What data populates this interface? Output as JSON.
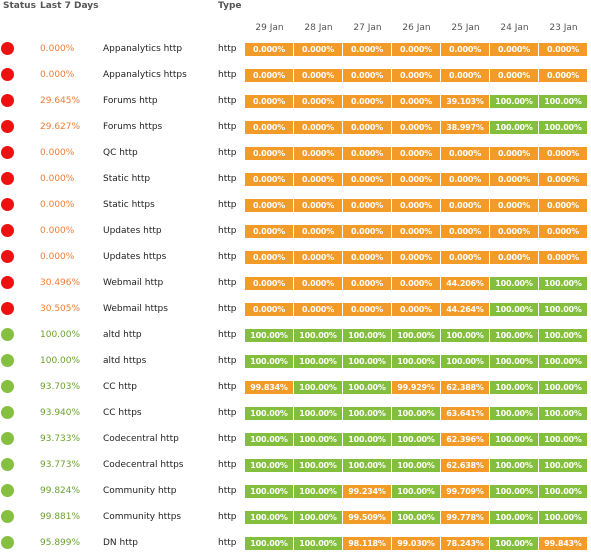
{
  "headers": {
    "status": "Status",
    "last7": "Last 7 Days",
    "type": "Type"
  },
  "dates": [
    "29 Jan",
    "28 Jan",
    "27 Jan",
    "26 Jan",
    "25 Jan",
    "24 Jan",
    "23 Jan"
  ],
  "colors": {
    "down": "#ee1111",
    "up": "#86c041",
    "bad_pct": "#f07d32",
    "good_pct": "#6aa22b",
    "cell_orange": "#f39b29",
    "cell_green": "#83bf3c"
  },
  "rows": [
    {
      "status": "down",
      "pct": "0.000%",
      "service": "Appanalytics http",
      "type": "http",
      "days": [
        "0.000%",
        "0.000%",
        "0.000%",
        "0.000%",
        "0.000%",
        "0.000%",
        "0.000%"
      ]
    },
    {
      "status": "down",
      "pct": "0.000%",
      "service": "Appanalytics https",
      "type": "http",
      "days": [
        "0.000%",
        "0.000%",
        "0.000%",
        "0.000%",
        "0.000%",
        "0.000%",
        "0.000%"
      ]
    },
    {
      "status": "down",
      "pct": "29.645%",
      "service": "Forums http",
      "type": "http",
      "days": [
        "0.000%",
        "0.000%",
        "0.000%",
        "0.000%",
        "39.103%",
        "100.00%",
        "100.00%"
      ]
    },
    {
      "status": "down",
      "pct": "29.627%",
      "service": "Forums https",
      "type": "http",
      "days": [
        "0.000%",
        "0.000%",
        "0.000%",
        "0.000%",
        "38.997%",
        "100.00%",
        "100.00%"
      ]
    },
    {
      "status": "down",
      "pct": "0.000%",
      "service": "QC http",
      "type": "http",
      "days": [
        "0.000%",
        "0.000%",
        "0.000%",
        "0.000%",
        "0.000%",
        "0.000%",
        "0.000%"
      ]
    },
    {
      "status": "down",
      "pct": "0.000%",
      "service": "Static http",
      "type": "http",
      "days": [
        "0.000%",
        "0.000%",
        "0.000%",
        "0.000%",
        "0.000%",
        "0.000%",
        "0.000%"
      ]
    },
    {
      "status": "down",
      "pct": "0.000%",
      "service": "Static https",
      "type": "http",
      "days": [
        "0.000%",
        "0.000%",
        "0.000%",
        "0.000%",
        "0.000%",
        "0.000%",
        "0.000%"
      ]
    },
    {
      "status": "down",
      "pct": "0.000%",
      "service": "Updates http",
      "type": "http",
      "days": [
        "0.000%",
        "0.000%",
        "0.000%",
        "0.000%",
        "0.000%",
        "0.000%",
        "0.000%"
      ]
    },
    {
      "status": "down",
      "pct": "0.000%",
      "service": "Updates https",
      "type": "http",
      "days": [
        "0.000%",
        "0.000%",
        "0.000%",
        "0.000%",
        "0.000%",
        "0.000%",
        "0.000%"
      ]
    },
    {
      "status": "down",
      "pct": "30.496%",
      "service": "Webmail http",
      "type": "http",
      "days": [
        "0.000%",
        "0.000%",
        "0.000%",
        "0.000%",
        "44.206%",
        "100.00%",
        "100.00%"
      ]
    },
    {
      "status": "down",
      "pct": "30.505%",
      "service": "Webmail https",
      "type": "http",
      "days": [
        "0.000%",
        "0.000%",
        "0.000%",
        "0.000%",
        "44.264%",
        "100.00%",
        "100.00%"
      ]
    },
    {
      "status": "up",
      "pct": "100.00%",
      "service": "altd http",
      "type": "http",
      "days": [
        "100.00%",
        "100.00%",
        "100.00%",
        "100.00%",
        "100.00%",
        "100.00%",
        "100.00%"
      ]
    },
    {
      "status": "up",
      "pct": "100.00%",
      "service": "altd https",
      "type": "http",
      "days": [
        "100.00%",
        "100.00%",
        "100.00%",
        "100.00%",
        "100.00%",
        "100.00%",
        "100.00%"
      ]
    },
    {
      "status": "up",
      "pct": "93.703%",
      "service": "CC http",
      "type": "http",
      "days": [
        "99.834%",
        "100.00%",
        "100.00%",
        "99.929%",
        "62.388%",
        "100.00%",
        "100.00%"
      ]
    },
    {
      "status": "up",
      "pct": "93.940%",
      "service": "CC https",
      "type": "http",
      "days": [
        "100.00%",
        "100.00%",
        "100.00%",
        "100.00%",
        "63.641%",
        "100.00%",
        "100.00%"
      ]
    },
    {
      "status": "up",
      "pct": "93.733%",
      "service": "Codecentral http",
      "type": "http",
      "days": [
        "100.00%",
        "100.00%",
        "100.00%",
        "100.00%",
        "62.396%",
        "100.00%",
        "100.00%"
      ]
    },
    {
      "status": "up",
      "pct": "93.773%",
      "service": "Codecentral https",
      "type": "http",
      "days": [
        "100.00%",
        "100.00%",
        "100.00%",
        "100.00%",
        "62.638%",
        "100.00%",
        "100.00%"
      ]
    },
    {
      "status": "up",
      "pct": "99.824%",
      "service": "Community http",
      "type": "http",
      "days": [
        "100.00%",
        "100.00%",
        "99.234%",
        "100.00%",
        "99.709%",
        "100.00%",
        "100.00%"
      ]
    },
    {
      "status": "up",
      "pct": "99.881%",
      "service": "Community https",
      "type": "http",
      "days": [
        "100.00%",
        "100.00%",
        "99.509%",
        "100.00%",
        "99.778%",
        "100.00%",
        "100.00%"
      ]
    },
    {
      "status": "up",
      "pct": "95.899%",
      "service": "DN http",
      "type": "http",
      "days": [
        "100.00%",
        "100.00%",
        "98.118%",
        "99.030%",
        "78.243%",
        "100.00%",
        "99.843%"
      ]
    }
  ]
}
